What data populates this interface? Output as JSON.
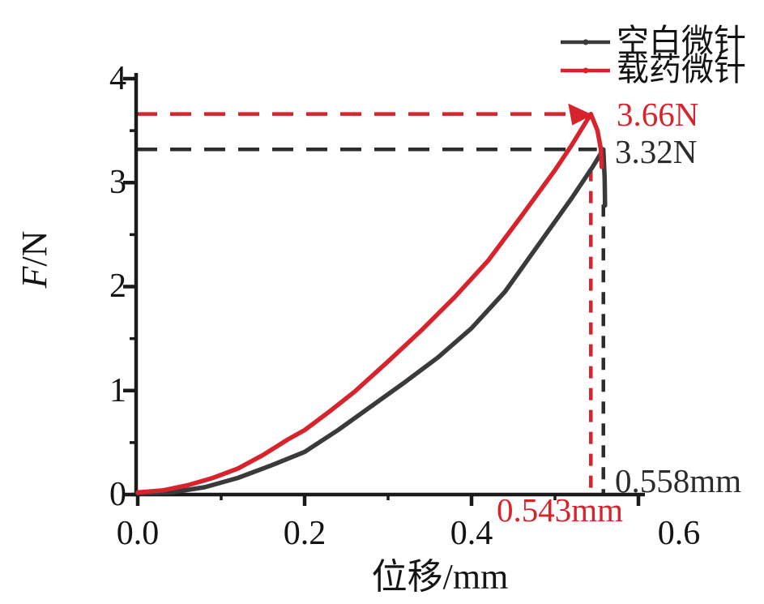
{
  "page": {
    "background": "#ffffff",
    "text_color": "#141414"
  },
  "legend": {
    "position": "top-right",
    "items": [
      {
        "key": "blank-microneedle",
        "label": "空白微针",
        "color": "#3a393b",
        "marker": "line-with-dot"
      },
      {
        "key": "drug-loaded-microneedle",
        "label": "载药微针",
        "color": "#d6232c",
        "marker": "line-with-dot"
      }
    ]
  },
  "chart_data": {
    "type": "line",
    "title": "",
    "xlabel": "位移/mm",
    "ylabel": "F/N",
    "ylabel_italic": "F",
    "ylabel_unit": "/N",
    "xlim": [
      0,
      0.6
    ],
    "ylim": [
      0,
      4
    ],
    "grid": false,
    "legend_position": "top-right",
    "xticks": [
      0,
      0.2,
      0.4,
      0.6
    ],
    "xticklabels": [
      "0.0",
      "0.2",
      "0.4",
      "0.6"
    ],
    "xminorticks": [
      0.1,
      0.3,
      0.5
    ],
    "yticks": [
      0,
      1,
      2,
      3,
      4
    ],
    "yticklabels": [
      "0",
      "1",
      "2",
      "3",
      "4"
    ],
    "yminorticks": [
      0.5,
      1.5,
      2.5,
      3.5
    ],
    "series": [
      {
        "key": "blank-microneedle",
        "name": "空白微针",
        "color": "#3a393b",
        "peak_force_N": 3.32,
        "peak_displacement_mm": 0.558,
        "points": [
          [
            0,
            0.01
          ],
          [
            0.04,
            0.02
          ],
          [
            0.08,
            0.07
          ],
          [
            0.12,
            0.16
          ],
          [
            0.16,
            0.28
          ],
          [
            0.2,
            0.41
          ],
          [
            0.24,
            0.62
          ],
          [
            0.28,
            0.85
          ],
          [
            0.32,
            1.08
          ],
          [
            0.36,
            1.32
          ],
          [
            0.4,
            1.6
          ],
          [
            0.44,
            1.95
          ],
          [
            0.48,
            2.4
          ],
          [
            0.52,
            2.85
          ],
          [
            0.545,
            3.15
          ],
          [
            0.558,
            3.32
          ],
          [
            0.5595,
            3.05
          ],
          [
            0.56,
            2.78
          ]
        ]
      },
      {
        "key": "drug-loaded-microneedle",
        "name": "载药微针",
        "color": "#d6232c",
        "peak_force_N": 3.66,
        "peak_displacement_mm": 0.543,
        "points": [
          [
            0,
            0.02
          ],
          [
            0.03,
            0.04
          ],
          [
            0.06,
            0.09
          ],
          [
            0.09,
            0.16
          ],
          [
            0.12,
            0.25
          ],
          [
            0.15,
            0.38
          ],
          [
            0.18,
            0.53
          ],
          [
            0.2,
            0.62
          ],
          [
            0.23,
            0.8
          ],
          [
            0.26,
            0.99
          ],
          [
            0.3,
            1.28
          ],
          [
            0.34,
            1.58
          ],
          [
            0.38,
            1.9
          ],
          [
            0.42,
            2.25
          ],
          [
            0.46,
            2.68
          ],
          [
            0.5,
            3.12
          ],
          [
            0.52,
            3.36
          ],
          [
            0.543,
            3.66
          ],
          [
            0.551,
            3.5
          ],
          [
            0.555,
            3.32
          ],
          [
            0.556,
            3.15
          ]
        ]
      }
    ],
    "guides": [
      {
        "series": "载药微针",
        "force_label": "3.66N",
        "disp_label": "0.543mm",
        "F": 3.66,
        "mm": 0.543,
        "color": "#d6232c",
        "arrow": true
      },
      {
        "series": "空白微针",
        "force_label": "3.32N",
        "disp_label": "0.558mm",
        "F": 3.32,
        "mm": 0.558,
        "color": "#2c2b2d",
        "arrow": false
      }
    ]
  }
}
